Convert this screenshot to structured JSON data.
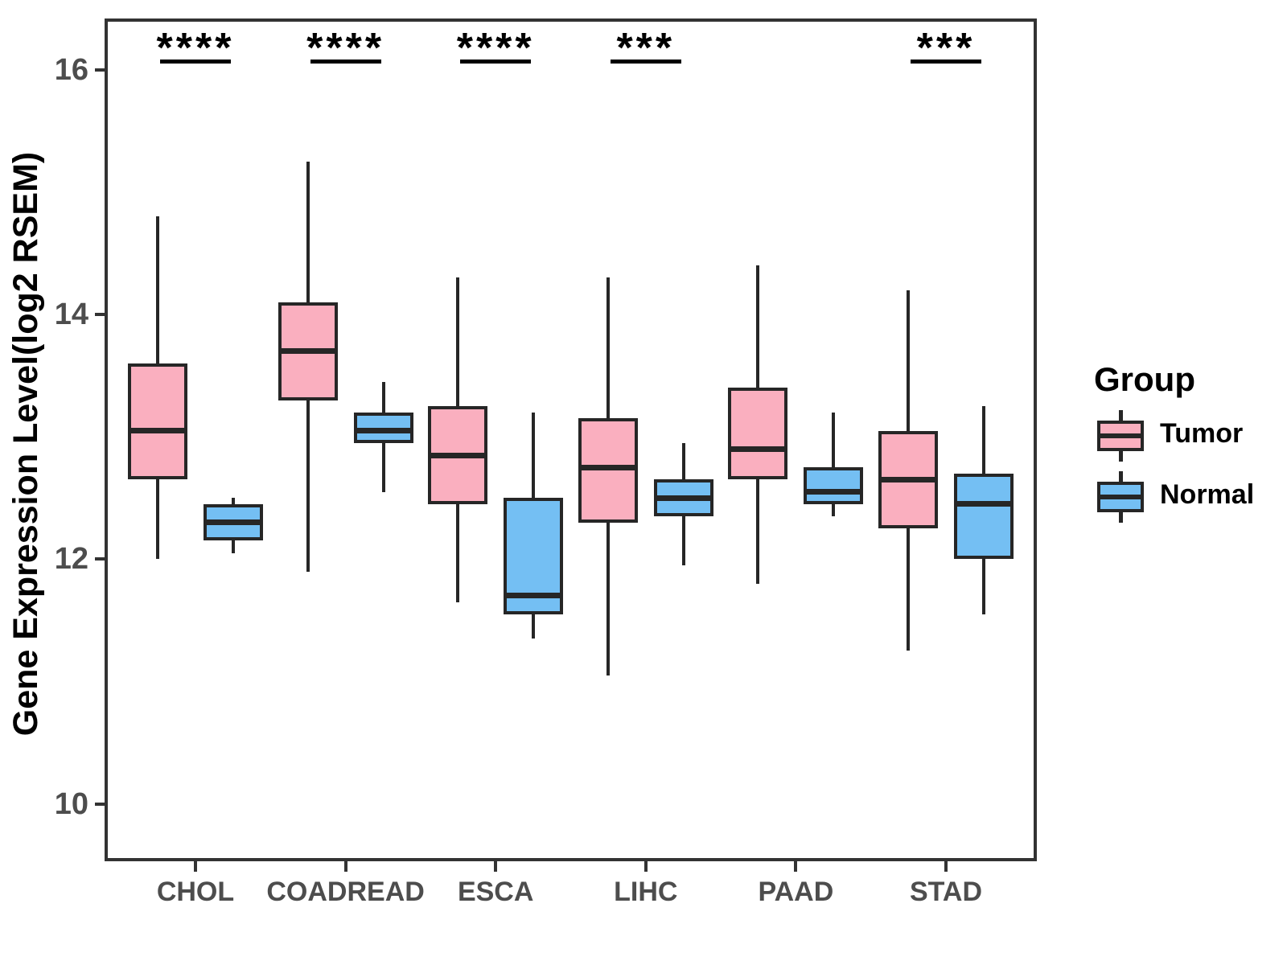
{
  "figure": {
    "ylabel": "Gene Expression Level(log2 RSEM)",
    "legend": {
      "title": "Group",
      "entries": [
        {
          "label": "Tumor",
          "color": "#FAAFBF"
        },
        {
          "label": "Normal",
          "color": "#74BFF3"
        }
      ]
    },
    "colors": {
      "tumor_fill": "#FAAFBF",
      "normal_fill": "#74BFF3",
      "box_outline": "#262626",
      "axis_line": "#333333",
      "tick_label": "#4D4D4D",
      "annotation": "#000000"
    }
  },
  "chart_data": {
    "type": "boxplot",
    "title": "",
    "xlabel": "",
    "ylabel": "Gene Expression Level(log2 RSEM)",
    "categories": [
      "CHOL",
      "COADREAD",
      "ESCA",
      "LIHC",
      "PAAD",
      "STAD"
    ],
    "groups": [
      {
        "name": "Tumor",
        "color": "#FAAFBF"
      },
      {
        "name": "Normal",
        "color": "#74BFF3"
      }
    ],
    "ylim": [
      9.53,
      16.42
    ],
    "y_ticks": [
      16,
      14,
      12,
      10
    ],
    "grid": false,
    "legend_position": "right",
    "significance": [
      "****",
      "****",
      "****",
      "***",
      null,
      "***"
    ],
    "series": [
      {
        "category": "CHOL",
        "tumor": {
          "whisker_low": 12.0,
          "q1": 12.65,
          "median": 13.05,
          "q3": 13.6,
          "whisker_high": 14.8
        },
        "normal": {
          "whisker_low": 12.05,
          "q1": 12.15,
          "median": 12.3,
          "q3": 12.45,
          "whisker_high": 12.5
        }
      },
      {
        "category": "COADREAD",
        "tumor": {
          "whisker_low": 11.9,
          "q1": 13.3,
          "median": 13.7,
          "q3": 14.1,
          "whisker_high": 15.25
        },
        "normal": {
          "whisker_low": 12.55,
          "q1": 12.95,
          "median": 13.05,
          "q3": 13.2,
          "whisker_high": 13.45
        }
      },
      {
        "category": "ESCA",
        "tumor": {
          "whisker_low": 11.65,
          "q1": 12.45,
          "median": 12.85,
          "q3": 13.25,
          "whisker_high": 14.3
        },
        "normal": {
          "whisker_low": 11.35,
          "q1": 11.55,
          "median": 11.7,
          "q3": 12.5,
          "whisker_high": 13.2
        }
      },
      {
        "category": "LIHC",
        "tumor": {
          "whisker_low": 11.05,
          "q1": 12.3,
          "median": 12.75,
          "q3": 13.15,
          "whisker_high": 14.3
        },
        "normal": {
          "whisker_low": 11.95,
          "q1": 12.35,
          "median": 12.5,
          "q3": 12.65,
          "whisker_high": 12.95
        }
      },
      {
        "category": "PAAD",
        "tumor": {
          "whisker_low": 11.8,
          "q1": 12.65,
          "median": 12.9,
          "q3": 13.4,
          "whisker_high": 14.4
        },
        "normal": {
          "whisker_low": 12.35,
          "q1": 12.45,
          "median": 12.55,
          "q3": 12.75,
          "whisker_high": 13.2
        }
      },
      {
        "category": "STAD",
        "tumor": {
          "whisker_low": 11.25,
          "q1": 12.25,
          "median": 12.65,
          "q3": 13.05,
          "whisker_high": 14.2
        },
        "normal": {
          "whisker_low": 11.55,
          "q1": 12.0,
          "median": 12.45,
          "q3": 12.7,
          "whisker_high": 13.25
        }
      }
    ]
  }
}
